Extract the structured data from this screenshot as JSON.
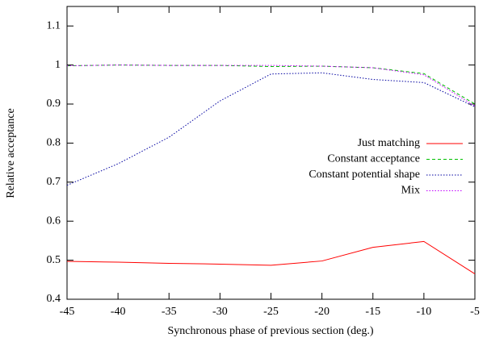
{
  "chart_data": {
    "type": "line",
    "x_label": "Synchronous phase of previous section (deg.)",
    "y_label": "Relative acceptance",
    "x": [
      -45,
      -40,
      -35,
      -30,
      -25,
      -20,
      -15,
      -10,
      -5
    ],
    "series": [
      {
        "name": "Just matching",
        "color": "#ff0000",
        "style": "solid",
        "values": [
          0.497,
          0.495,
          0.492,
          0.49,
          0.487,
          0.498,
          0.533,
          0.548,
          0.465
        ]
      },
      {
        "name": "Constant acceptance",
        "color": "#00c000",
        "style": "dashed",
        "values": [
          0.998,
          1.0,
          0.999,
          0.999,
          0.996,
          0.997,
          0.993,
          0.978,
          0.9
        ]
      },
      {
        "name": "Constant potential shape",
        "color": "#0000a0",
        "style": "dotted",
        "values": [
          0.692,
          0.747,
          0.815,
          0.908,
          0.977,
          0.98,
          0.963,
          0.955,
          0.893
        ]
      },
      {
        "name": "Mix",
        "color": "#c000ff",
        "style": "dotted",
        "values": [
          0.998,
          1.0,
          0.999,
          0.999,
          0.999,
          0.997,
          0.993,
          0.975,
          0.895
        ]
      }
    ],
    "xlim": [
      -45,
      -5
    ],
    "xticks": [
      -45,
      -40,
      -35,
      -30,
      -25,
      -20,
      -15,
      -10,
      -5
    ],
    "ylim": [
      0.4,
      1.15
    ],
    "yticks": [
      0.4,
      0.5,
      0.6,
      0.7,
      0.8,
      0.9,
      1,
      1.1
    ],
    "legend": "right"
  }
}
